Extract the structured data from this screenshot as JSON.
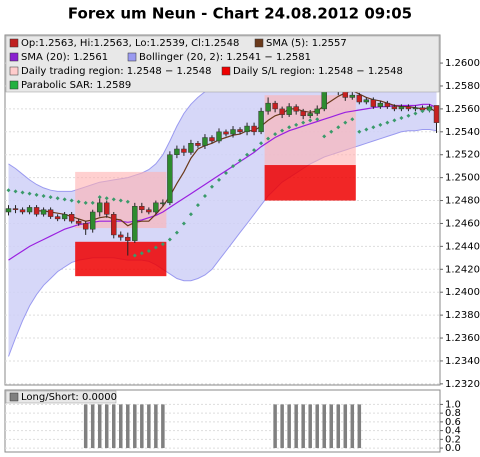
{
  "chart_data": {
    "type": "candlestick",
    "title": "Forex um Neun - Chart 24.08.2012 09:05",
    "legend": [
      {
        "label": "Op:1.2563, Hi:1.2563, Lo:1.2539, Cl:1.2548",
        "color": "#c02020"
      },
      {
        "label": "SMA (5): 1.2557",
        "color": "#6b3a1c"
      },
      {
        "label": "SMA (20): 1.2561",
        "color": "#8a20d0"
      },
      {
        "label": "Bollinger (20, 2): 1.2541 − 1.2581",
        "color": "#9a9af0"
      },
      {
        "label": "Daily trading region: 1.2548 − 1.2548",
        "color": "#ffcccc"
      },
      {
        "label": "Daily S/L region: 1.2548 − 1.2548",
        "color": "#ee0000"
      },
      {
        "label": "Parabolic SAR: 1.2589",
        "color": "#22b040"
      }
    ],
    "open": [
      1.247,
      1.2473,
      1.2472,
      1.247,
      1.2474,
      1.2468,
      1.2472,
      1.2466,
      1.2464,
      1.2468,
      1.2462,
      1.246,
      1.2455,
      1.247,
      1.2478,
      1.2468,
      1.245,
      1.2448,
      1.2445,
      1.2475,
      1.2472,
      1.247,
      1.2478,
      1.2478,
      1.252,
      1.2525,
      1.2522,
      1.253,
      1.2528,
      1.2535,
      1.2532,
      1.254,
      1.2538,
      1.2542,
      1.254,
      1.2545,
      1.254,
      1.2558,
      1.2565,
      1.256,
      1.2555,
      1.2562,
      1.2558,
      1.2554,
      1.2556,
      1.256,
      1.2585,
      1.258,
      1.2575,
      1.257,
      1.2572,
      1.2566,
      1.2568,
      1.2562,
      1.2565,
      1.2562,
      1.256,
      1.2562,
      1.256,
      1.2561,
      1.2559,
      1.2563
    ],
    "high": [
      1.2476,
      1.2476,
      1.2474,
      1.2476,
      1.2476,
      1.2474,
      1.2474,
      1.2468,
      1.247,
      1.247,
      1.2464,
      1.2462,
      1.2472,
      1.2482,
      1.248,
      1.247,
      1.2453,
      1.2452,
      1.2478,
      1.2478,
      1.2474,
      1.248,
      1.2481,
      1.2523,
      1.2528,
      1.2528,
      1.2533,
      1.2532,
      1.2538,
      1.2537,
      1.2543,
      1.2542,
      1.2545,
      1.2544,
      1.2548,
      1.2548,
      1.2561,
      1.257,
      1.2567,
      1.2562,
      1.2565,
      1.2564,
      1.256,
      1.2559,
      1.2563,
      1.2592,
      1.2588,
      1.2582,
      1.2578,
      1.2575,
      1.2574,
      1.257,
      1.257,
      1.2567,
      1.2567,
      1.2564,
      1.2564,
      1.2564,
      1.2563,
      1.2563,
      1.2564,
      1.2563
    ],
    "low": [
      1.2467,
      1.2469,
      1.2468,
      1.2468,
      1.2466,
      1.2466,
      1.2464,
      1.2462,
      1.2462,
      1.246,
      1.2458,
      1.245,
      1.2452,
      1.2466,
      1.2465,
      1.2447,
      1.2445,
      1.2432,
      1.2443,
      1.2469,
      1.2468,
      1.2468,
      1.2475,
      1.2476,
      1.2517,
      1.2519,
      1.252,
      1.2526,
      1.2525,
      1.253,
      1.253,
      1.2536,
      1.2535,
      1.2538,
      1.2537,
      1.2537,
      1.2538,
      1.2555,
      1.2557,
      1.2552,
      1.2553,
      1.2555,
      1.2551,
      1.2552,
      1.2554,
      1.2558,
      1.2577,
      1.2572,
      1.2567,
      1.2568,
      1.2564,
      1.2564,
      1.256,
      1.256,
      1.256,
      1.2558,
      1.2558,
      1.2558,
      1.2558,
      1.2557,
      1.2557,
      1.2539
    ],
    "close": [
      1.2473,
      1.2472,
      1.247,
      1.2474,
      1.2468,
      1.2472,
      1.2466,
      1.2464,
      1.2468,
      1.2462,
      1.246,
      1.2455,
      1.247,
      1.2478,
      1.2468,
      1.245,
      1.2448,
      1.2445,
      1.2475,
      1.2472,
      1.247,
      1.2478,
      1.2478,
      1.252,
      1.2525,
      1.2522,
      1.253,
      1.2528,
      1.2535,
      1.2532,
      1.254,
      1.2538,
      1.2542,
      1.254,
      1.2545,
      1.254,
      1.2558,
      1.2565,
      1.256,
      1.2555,
      1.2562,
      1.2558,
      1.2554,
      1.2556,
      1.256,
      1.2585,
      1.258,
      1.2575,
      1.257,
      1.2572,
      1.2566,
      1.2568,
      1.2562,
      1.2565,
      1.2562,
      1.256,
      1.2562,
      1.256,
      1.2561,
      1.2559,
      1.2562,
      1.2548
    ],
    "up_color": "#2e8b2e",
    "down_color": "#c82020",
    "sma5": {
      "color": "#6b3a1c",
      "values": [
        null,
        null,
        null,
        null,
        1.2471,
        1.2471,
        1.247,
        1.2469,
        1.2468,
        1.2466,
        1.2464,
        1.2462,
        1.2463,
        1.2465,
        1.2466,
        1.2464,
        1.2463,
        1.2458,
        1.2461,
        1.2462,
        1.2462,
        1.2468,
        1.2475,
        1.2484,
        1.2495,
        1.2505,
        1.2517,
        1.2525,
        1.2528,
        1.253,
        1.2533,
        1.2535,
        1.2537,
        1.2538,
        1.2541,
        1.2541,
        1.2545,
        1.255,
        1.2554,
        1.2556,
        1.256,
        1.256,
        1.2558,
        1.2557,
        1.2558,
        1.2563,
        1.2567,
        1.2571,
        1.2574,
        1.2576,
        1.2573,
        1.257,
        1.2568,
        1.2567,
        1.2565,
        1.2563,
        1.2562,
        1.2562,
        1.2561,
        1.256,
        1.2561,
        1.2557
      ]
    },
    "sma20": {
      "color": "#9a20e0",
      "values": [
        1.2428,
        1.2432,
        1.2436,
        1.244,
        1.2443,
        1.2446,
        1.2449,
        1.2452,
        1.2455,
        1.2457,
        1.2459,
        1.246,
        1.2461,
        1.2462,
        1.2462,
        1.2462,
        1.2462,
        1.2461,
        1.2462,
        1.2463,
        1.2465,
        1.2467,
        1.247,
        1.2474,
        1.2478,
        1.2482,
        1.2486,
        1.249,
        1.2494,
        1.2498,
        1.2502,
        1.2506,
        1.251,
        1.2514,
        1.2518,
        1.2522,
        1.2527,
        1.2531,
        1.2535,
        1.2538,
        1.2541,
        1.2543,
        1.2545,
        1.2547,
        1.2549,
        1.2551,
        1.2553,
        1.2555,
        1.2557,
        1.2558,
        1.2559,
        1.256,
        1.2561,
        1.2562,
        1.2562,
        1.2563,
        1.2563,
        1.2563,
        1.2563,
        1.2564,
        1.2564,
        1.2561
      ]
    },
    "bollinger": {
      "color": "#9a9af0",
      "fill": "#cfd0f7",
      "upper": [
        1.2512,
        1.2508,
        1.2503,
        1.2498,
        1.2494,
        1.2491,
        1.2489,
        1.2488,
        1.2488,
        1.2488,
        1.249,
        1.2492,
        1.2494,
        1.2496,
        1.2497,
        1.2498,
        1.2499,
        1.25,
        1.2502,
        1.2504,
        1.2507,
        1.2512,
        1.252,
        1.2532,
        1.2545,
        1.2556,
        1.2564,
        1.257,
        1.2575,
        1.2578,
        1.258,
        1.2581,
        1.2582,
        1.2582,
        1.2582,
        1.2582,
        1.2583,
        1.2584,
        1.2585,
        1.2586,
        1.2587,
        1.2588,
        1.2588,
        1.2588,
        1.2588,
        1.2589,
        1.259,
        1.259,
        1.2589,
        1.2588,
        1.2586,
        1.2584,
        1.2583,
        1.2582,
        1.2581,
        1.2581,
        1.2581,
        1.2581,
        1.2581,
        1.2581,
        1.2581,
        1.2581
      ],
      "lower": [
        1.2344,
        1.236,
        1.2375,
        1.2388,
        1.2398,
        1.2406,
        1.2412,
        1.2418,
        1.2422,
        1.2426,
        1.2428,
        1.2429,
        1.243,
        1.243,
        1.243,
        1.243,
        1.2429,
        1.2428,
        1.2428,
        1.2428,
        1.2427,
        1.2424,
        1.242,
        1.2416,
        1.2412,
        1.241,
        1.241,
        1.2412,
        1.2415,
        1.242,
        1.2428,
        1.2436,
        1.2444,
        1.2452,
        1.246,
        1.2468,
        1.2476,
        1.2484,
        1.249,
        1.2496,
        1.25,
        1.2504,
        1.2508,
        1.2512,
        1.2515,
        1.2518,
        1.252,
        1.2522,
        1.2524,
        1.2526,
        1.2528,
        1.253,
        1.2532,
        1.2534,
        1.2536,
        1.2538,
        1.254,
        1.2541,
        1.2541,
        1.2542,
        1.2542,
        1.2541
      ]
    },
    "sar": {
      "color": "#3a9a6a",
      "values": [
        1.2489,
        1.2488,
        1.2487,
        1.2486,
        1.2485,
        1.2484,
        1.2483,
        1.2482,
        1.2481,
        1.248,
        1.2479,
        1.2478,
        1.2478,
        1.2483,
        1.2482,
        1.2481,
        1.248,
        1.2479,
        1.2432,
        1.2434,
        1.2436,
        1.2439,
        1.2442,
        1.2446,
        1.2452,
        1.246,
        1.2468,
        1.2476,
        1.2484,
        1.2492,
        1.2498,
        1.2504,
        1.251,
        1.2515,
        1.252,
        1.2524,
        1.253,
        1.2534,
        1.2538,
        1.2541,
        1.2544,
        1.2546,
        1.2548,
        1.255,
        1.2551,
        1.2536,
        1.254,
        1.2544,
        1.2548,
        1.2551,
        1.254,
        1.2542,
        1.2544,
        1.2546,
        1.2548,
        1.255,
        1.2552,
        1.2554,
        1.2556,
        1.2558,
        1.2559,
        1.2589
      ]
    },
    "regions": [
      {
        "x": [
          10,
          22
        ],
        "range": [
          1.2456,
          1.2505
        ],
        "sl_range": [
          1.2414,
          1.2444
        ]
      },
      {
        "x": [
          37,
          49
        ],
        "range": [
          1.2511,
          1.2572
        ],
        "sl_range": [
          1.248,
          1.2511
        ]
      }
    ],
    "region_color": "#ffb0b0",
    "sl_color": "#ee0000",
    "ylim": [
      1.2319,
      1.26245
    ],
    "yticks": [
      {
        "value": 1.232,
        "label": "1.2320"
      },
      {
        "value": 1.234,
        "label": "1.2340"
      },
      {
        "value": 1.236,
        "label": "1.2360"
      },
      {
        "value": 1.238,
        "label": "1.2380"
      },
      {
        "value": 1.24,
        "label": "1.2400"
      },
      {
        "value": 1.242,
        "label": "1.2420"
      },
      {
        "value": 1.244,
        "label": "1.2440"
      },
      {
        "value": 1.246,
        "label": "1.2460"
      },
      {
        "value": 1.248,
        "label": "1.2480"
      },
      {
        "value": 1.25,
        "label": "1.2500"
      },
      {
        "value": 1.252,
        "label": "1.2520"
      },
      {
        "value": 1.254,
        "label": "1.2540"
      },
      {
        "value": 1.256,
        "label": "1.2560"
      },
      {
        "value": 1.258,
        "label": "1.2580"
      },
      {
        "value": 1.26,
        "label": "1.2600"
      }
    ],
    "grid": true,
    "panel": {
      "type": "bar",
      "legend": {
        "label": "Long/Short: 0.0000",
        "color": "#808080"
      },
      "color": "#808080",
      "values": [
        0,
        0,
        0,
        0,
        0,
        0,
        0,
        0,
        0,
        0,
        0,
        1,
        1,
        1,
        1,
        1,
        1,
        1,
        1,
        1,
        1,
        1,
        1,
        0,
        0,
        0,
        0,
        0,
        0,
        0,
        0,
        0,
        0,
        0,
        0,
        0,
        0,
        0,
        1,
        1,
        1,
        1,
        1,
        1,
        1,
        1,
        1,
        1,
        1,
        1,
        1,
        0,
        0,
        0,
        0,
        0,
        0,
        0,
        0,
        0,
        0,
        0
      ],
      "ylim": [
        -0.09,
        1.33
      ],
      "yticks": [
        {
          "value": 0,
          "label": "0.0"
        },
        {
          "value": 0.2,
          "label": "0.2"
        },
        {
          "value": 0.4,
          "label": "0.4"
        },
        {
          "value": 0.6,
          "label": "0.6"
        },
        {
          "value": 0.8,
          "label": "0.8"
        },
        {
          "value": 1,
          "label": "1.0"
        }
      ]
    }
  }
}
